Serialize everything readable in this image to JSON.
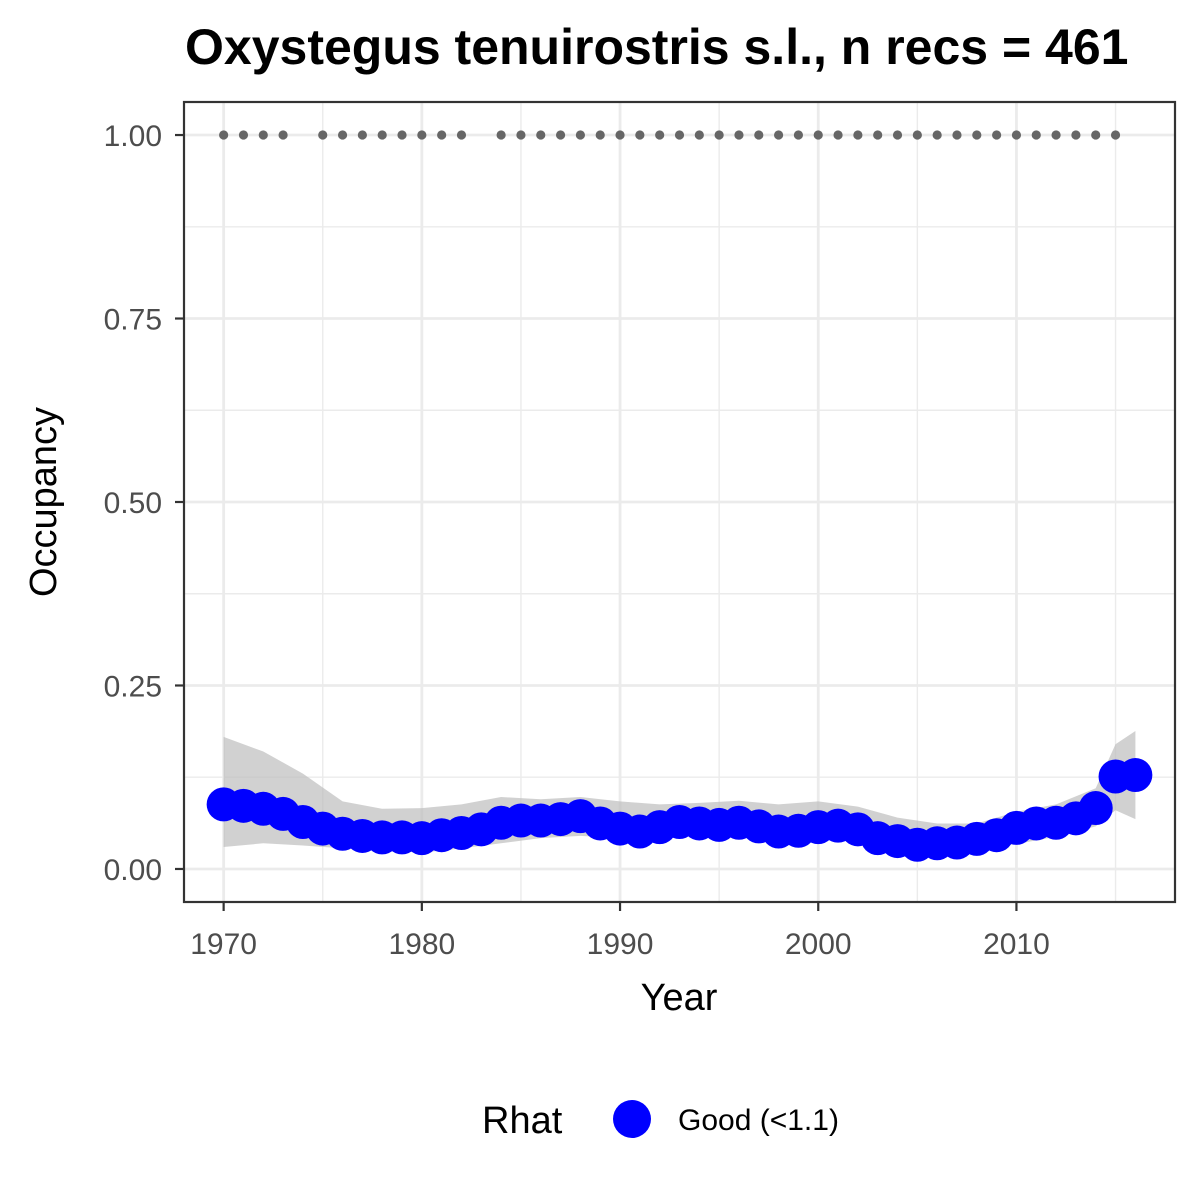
{
  "chart_data": {
    "type": "line",
    "title": "Oxystegus tenuirostris s.l., n recs = 461",
    "xlabel": "Year",
    "ylabel": "Occupancy",
    "xlim": [
      1968,
      2018
    ],
    "ylim": [
      -0.045,
      1.045
    ],
    "x_ticks": [
      1970,
      1980,
      1990,
      2000,
      2010
    ],
    "x_tick_labels": [
      "1970",
      "1980",
      "1990",
      "2000",
      "2010"
    ],
    "y_ticks": [
      0,
      0.25,
      0.5,
      0.75,
      1.0
    ],
    "y_tick_labels": [
      "0.00",
      "0.25",
      "0.50",
      "0.75",
      "1.00"
    ],
    "grid": true,
    "legend": {
      "title": "Rhat",
      "placement": "bottom",
      "entries": [
        "Good (<1.1)"
      ]
    },
    "colors": {
      "points": "#0000ff",
      "ribbon": "#bebebe",
      "records": "#666666",
      "grid": "#ebebeb",
      "panel_border": "#333333"
    },
    "series": [
      {
        "name": "Good (<1.1)",
        "x": [
          1970,
          1971,
          1972,
          1973,
          1974,
          1975,
          1976,
          1977,
          1978,
          1979,
          1980,
          1981,
          1982,
          1983,
          1984,
          1985,
          1986,
          1987,
          1988,
          1989,
          1990,
          1991,
          1992,
          1993,
          1994,
          1995,
          1996,
          1997,
          1998,
          1999,
          2000,
          2001,
          2002,
          2003,
          2004,
          2005,
          2006,
          2007,
          2008,
          2009,
          2010,
          2011,
          2012,
          2013,
          2014,
          2015,
          2016
        ],
        "values": [
          0.088,
          0.086,
          0.082,
          0.075,
          0.064,
          0.055,
          0.048,
          0.045,
          0.043,
          0.043,
          0.042,
          0.046,
          0.049,
          0.054,
          0.063,
          0.066,
          0.066,
          0.068,
          0.072,
          0.062,
          0.055,
          0.051,
          0.057,
          0.064,
          0.062,
          0.06,
          0.063,
          0.058,
          0.051,
          0.052,
          0.057,
          0.059,
          0.054,
          0.042,
          0.038,
          0.033,
          0.035,
          0.036,
          0.041,
          0.046,
          0.056,
          0.062,
          0.063,
          0.069,
          0.083,
          0.126,
          0.128
        ]
      }
    ],
    "ribbon": {
      "x": [
        1970,
        1972,
        1974,
        1976,
        1978,
        1980,
        1982,
        1984,
        1986,
        1988,
        1990,
        1992,
        1994,
        1996,
        1998,
        2000,
        2002,
        2004,
        2006,
        2008,
        2010,
        2012,
        2014,
        2015,
        2016
      ],
      "lower": [
        0.03,
        0.035,
        0.032,
        0.028,
        0.026,
        0.022,
        0.028,
        0.035,
        0.042,
        0.045,
        0.042,
        0.045,
        0.046,
        0.045,
        0.044,
        0.043,
        0.038,
        0.032,
        0.026,
        0.026,
        0.034,
        0.044,
        0.058,
        0.08,
        0.068
      ],
      "upper": [
        0.18,
        0.16,
        0.13,
        0.092,
        0.082,
        0.083,
        0.088,
        0.098,
        0.095,
        0.098,
        0.092,
        0.088,
        0.09,
        0.093,
        0.088,
        0.092,
        0.085,
        0.07,
        0.062,
        0.062,
        0.078,
        0.088,
        0.11,
        0.17,
        0.188
      ]
    },
    "records": {
      "value": 1.0,
      "years": [
        1970,
        1971,
        1972,
        1973,
        1975,
        1976,
        1977,
        1978,
        1979,
        1980,
        1981,
        1982,
        1984,
        1985,
        1986,
        1987,
        1988,
        1989,
        1990,
        1991,
        1992,
        1993,
        1994,
        1995,
        1996,
        1997,
        1998,
        1999,
        2000,
        2001,
        2002,
        2003,
        2004,
        2005,
        2006,
        2007,
        2008,
        2009,
        2010,
        2011,
        2012,
        2013,
        2014,
        2015
      ]
    }
  }
}
